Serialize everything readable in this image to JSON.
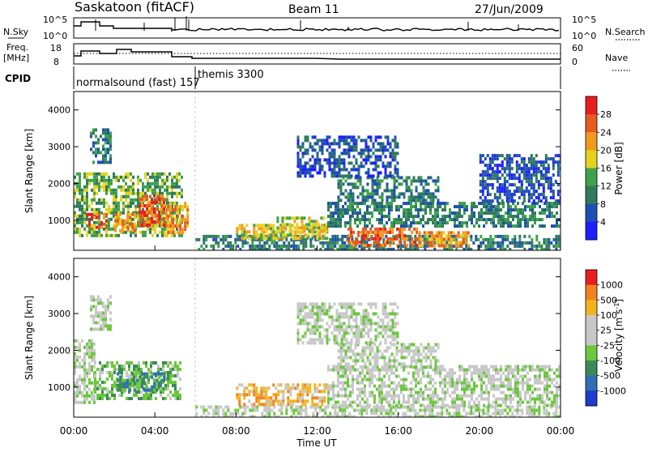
{
  "header": {
    "station": "Saskatoon (fitACF)",
    "beam": "Beam 11",
    "date": "27/Jun/2009"
  },
  "noise_panel": {
    "left_label": "N.Sky",
    "right_label": "N.Search",
    "left_ticks": [
      "10^5",
      "10^0"
    ],
    "right_ticks": [
      "10^5",
      "10^0"
    ]
  },
  "freq_panel": {
    "left_label_1": "Freq.",
    "left_label_2": "[MHz]",
    "right_label": "Nave",
    "left_ticks": [
      "18",
      "8"
    ],
    "right_ticks": [
      "60",
      "0"
    ]
  },
  "cpid": {
    "label": "CPID",
    "segments": [
      {
        "text": "normalsound (fast) 157",
        "start_hour": 0
      },
      {
        "text": "themis 3300",
        "start_hour": 6
      }
    ]
  },
  "time_axis": {
    "label": "Time UT",
    "ticks": [
      "00:00",
      "04:00",
      "08:00",
      "12:00",
      "16:00",
      "20:00",
      "00:00"
    ]
  },
  "chart_data": [
    {
      "type": "heatmap",
      "title": "Power",
      "ylabel": "Slant Range [km]",
      "xlabel": "Time UT",
      "xlim": [
        0,
        24
      ],
      "ylim": [
        180,
        4500
      ],
      "yticks": [
        "1000",
        "2000",
        "3000",
        "4000"
      ],
      "colorbar": {
        "label": "Power [dB]",
        "tick_labels": [
          "4",
          "8",
          "12",
          "16",
          "20",
          "24",
          "28"
        ],
        "colors": [
          "#1e1eff",
          "#1e4fb4",
          "#2f7a5c",
          "#3ea24a",
          "#e6d21e",
          "#f29a1e",
          "#e85a1e",
          "#e81e1e"
        ]
      },
      "regions": [
        {
          "t0": 0.0,
          "t1": 5.3,
          "r0": 600,
          "r1": 2300,
          "level": 3
        },
        {
          "t0": 0.6,
          "t1": 1.6,
          "r0": 800,
          "r1": 1200,
          "level": 6
        },
        {
          "t0": 2.0,
          "t1": 3.0,
          "r0": 700,
          "r1": 1200,
          "level": 5
        },
        {
          "t0": 3.2,
          "t1": 4.6,
          "r0": 900,
          "r1": 1700,
          "level": 6
        },
        {
          "t0": 4.6,
          "t1": 5.6,
          "r0": 700,
          "r1": 1500,
          "level": 5
        },
        {
          "t0": 0.8,
          "t1": 1.8,
          "r0": 2600,
          "r1": 3500,
          "level": 2
        },
        {
          "t0": 6.0,
          "t1": 24.0,
          "r0": 180,
          "r1": 600,
          "level": 2
        },
        {
          "t0": 8.0,
          "t1": 12.5,
          "r0": 500,
          "r1": 900,
          "level": 4
        },
        {
          "t0": 10.0,
          "t1": 12.5,
          "r0": 700,
          "r1": 1100,
          "level": 4
        },
        {
          "t0": 13.5,
          "t1": 17.0,
          "r0": 300,
          "r1": 800,
          "level": 6
        },
        {
          "t0": 17.0,
          "t1": 19.5,
          "r0": 300,
          "r1": 700,
          "level": 5
        },
        {
          "t0": 12.5,
          "t1": 24.0,
          "r0": 800,
          "r1": 1500,
          "level": 2
        },
        {
          "t0": 13.0,
          "t1": 18.0,
          "r0": 1500,
          "r1": 2200,
          "level": 2
        },
        {
          "t0": 11.0,
          "t1": 16.0,
          "r0": 2200,
          "r1": 3300,
          "level": 1
        },
        {
          "t0": 20.0,
          "t1": 24.0,
          "r0": 1500,
          "r1": 2800,
          "level": 1
        }
      ]
    },
    {
      "type": "heatmap",
      "title": "Velocity",
      "ylabel": "Slant Range [km]",
      "xlabel": "Time UT",
      "xlim": [
        0,
        24
      ],
      "ylim": [
        180,
        4500
      ],
      "yticks": [
        "1000",
        "2000",
        "3000",
        "4000"
      ],
      "colorbar": {
        "label": "Velocity [m s^-1]",
        "tick_labels": [
          "1000",
          "500",
          "100",
          "25",
          "-25",
          "-100",
          "-500",
          "-1000"
        ],
        "colors": [
          "#1e3cd2",
          "#2f6eb4",
          "#3b8a5a",
          "#6ac83c",
          "#c8c8c8",
          "#c8c8c8",
          "#f2b41e",
          "#f2821e",
          "#e81e1e"
        ]
      },
      "regions": [
        {
          "t0": 0.0,
          "t1": 1.0,
          "r0": 600,
          "r1": 2300,
          "level": 4
        },
        {
          "t0": 1.0,
          "t1": 5.3,
          "r0": 700,
          "r1": 1700,
          "level": 3
        },
        {
          "t0": 2.0,
          "t1": 4.5,
          "r0": 900,
          "r1": 1400,
          "level": 2
        },
        {
          "t0": 0.8,
          "t1": 1.8,
          "r0": 2600,
          "r1": 3500,
          "level": 4
        },
        {
          "t0": 6.0,
          "t1": 24.0,
          "r0": 180,
          "r1": 500,
          "level": 4
        },
        {
          "t0": 8.0,
          "t1": 12.5,
          "r0": 500,
          "r1": 1100,
          "level": 6
        },
        {
          "t0": 12.5,
          "t1": 24.0,
          "r0": 500,
          "r1": 1600,
          "level": 4
        },
        {
          "t0": 13.0,
          "t1": 18.0,
          "r0": 1500,
          "r1": 2200,
          "level": 4
        },
        {
          "t0": 11.0,
          "t1": 16.0,
          "r0": 2200,
          "r1": 3300,
          "level": 4
        }
      ]
    }
  ]
}
